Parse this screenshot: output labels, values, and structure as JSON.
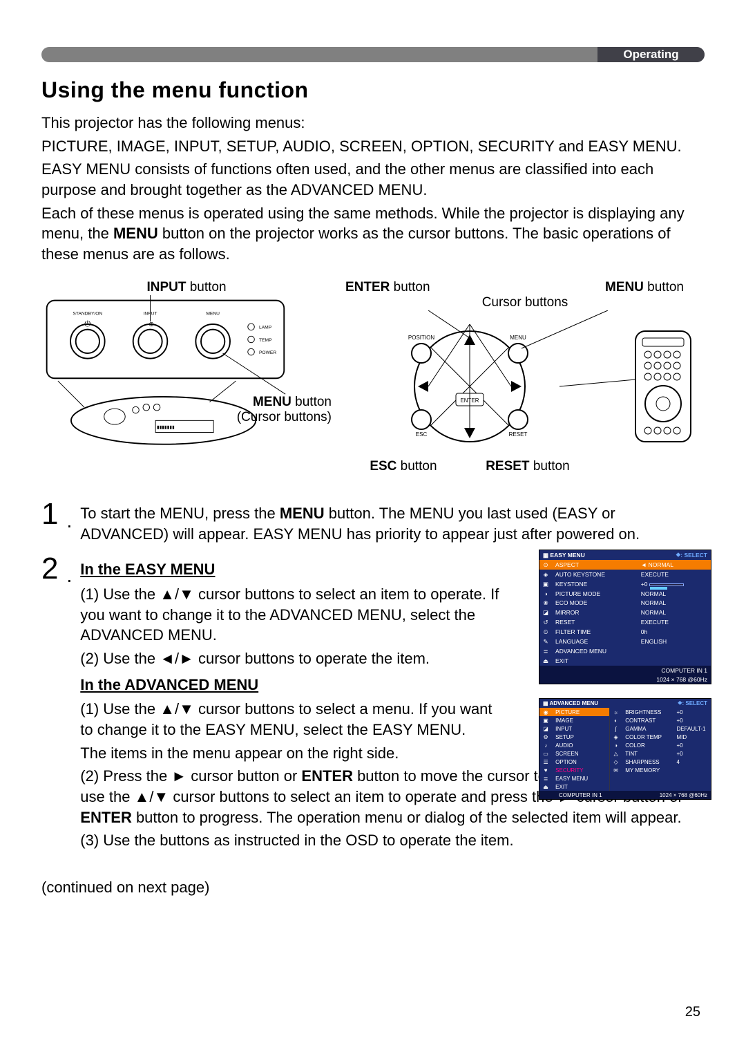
{
  "header": {
    "section": "Operating"
  },
  "title": "Using the menu function",
  "intro_line1": "This projector has the following menus:",
  "intro_line2": "PICTURE, IMAGE, INPUT, SETUP, AUDIO, SCREEN, OPTION, SECURITY and EASY MENU.",
  "intro_line3": "EASY MENU consists of functions often used, and the other menus are classified into each purpose and brought together as the ADVANCED MENU.",
  "intro_line4_a": "Each of these menus is operated using the same methods. While the projector is displaying any menu, the ",
  "intro_line4_menu": "MENU",
  "intro_line4_b": " button on the projector works as the cursor buttons. The basic operations of these menus are as follows.",
  "diag": {
    "input_btn_bold": "INPUT",
    "input_btn_rest": " button",
    "menu_btn_bold": "MENU",
    "menu_btn_rest": " button",
    "cursor_btns": "(Cursor buttons)",
    "enter_btn_bold": "ENTER",
    "enter_btn_rest": " button",
    "menu2_bold": "MENU",
    "menu2_rest": " button",
    "cursor_btns2": "Cursor buttons",
    "esc_btn_bold": "ESC",
    "esc_btn_rest": " button",
    "reset_btn_bold": "RESET",
    "reset_btn_rest": " button",
    "top_labels": {
      "standby": "STANDBY/ON",
      "input": "INPUT",
      "menu": "MENU",
      "lamp": "LAMP",
      "temp": "TEMP",
      "power": "POWER"
    },
    "remote_labels": {
      "position": "POSITION",
      "menu": "MENU",
      "enter": "ENTER",
      "esc": "ESC",
      "reset": "RESET"
    }
  },
  "step1_a": "To start the MENU, press the ",
  "step1_menu": "MENU",
  "step1_b": " button. The MENU you last used (EASY or ADVANCED) will appear. EASY MENU has priority to appear just after powered on.",
  "easy_heading": "In the EASY MENU",
  "easy_1": "(1) Use the ▲/▼ cursor buttons to select an item to operate. If you want to change it to the ADVANCED MENU, select the ADVANCED MENU.",
  "easy_2": "(2) Use the ◄/► cursor buttons to operate the item.",
  "adv_heading": "In the ADVANCED MENU",
  "adv_1": "(1) Use the ▲/▼ cursor buttons to select a menu. If you want to change it to the EASY MENU, select the EASY MENU.",
  "adv_1b": "The items in the menu appear on the right side.",
  "adv_2a": "(2) Press the ► cursor button or ",
  "adv_2_enter": "ENTER",
  "adv_2b": " button to move the cursor to the right side. Then use the ▲/▼ cursor buttons to select an item to operate and press the ► cursor button or ",
  "adv_2_enter2": "ENTER",
  "adv_2c": " button to progress. The operation menu or dialog of the selected item will appear.",
  "adv_3": "(3) Use the buttons as instructed in the OSD to operate the item.",
  "continued": "(continued on next page)",
  "page_number": "25",
  "easy_menu": {
    "title": "EASY MENU",
    "select": "⯁: SELECT",
    "rows": [
      {
        "icon": "⊙",
        "label": "ASPECT",
        "value": "◄ NORMAL",
        "sel": true
      },
      {
        "icon": "◈",
        "label": "AUTO KEYSTONE",
        "value": "EXECUTE"
      },
      {
        "icon": "▣",
        "label": "KEYSTONE",
        "value": "+0"
      },
      {
        "icon": "◑",
        "label": "PICTURE MODE",
        "value": "NORMAL"
      },
      {
        "icon": "❀",
        "label": "ECO MODE",
        "value": "NORMAL"
      },
      {
        "icon": "◪",
        "label": "MIRROR",
        "value": "NORMAL"
      },
      {
        "icon": "↺",
        "label": "RESET",
        "value": "EXECUTE"
      },
      {
        "icon": "⏲",
        "label": "FILTER TIME",
        "value": "0h"
      },
      {
        "icon": "✎",
        "label": "LANGUAGE",
        "value": "ENGLISH"
      },
      {
        "icon": "≣",
        "label": "ADVANCED MENU",
        "value": ""
      },
      {
        "icon": "⏏",
        "label": "EXIT",
        "value": ""
      }
    ],
    "info1": "COMPUTER IN 1",
    "info2": "1024 × 768 @60Hz"
  },
  "adv_menu": {
    "title": "ADVANCED MENU",
    "select": "⯁: SELECT",
    "left": [
      "PICTURE",
      "IMAGE",
      "INPUT",
      "SETUP",
      "AUDIO",
      "SCREEN",
      "OPTION",
      "SECURITY",
      "EASY MENU",
      "EXIT"
    ],
    "right": [
      {
        "icon": "☼",
        "label": "BRIGHTNESS",
        "value": "+0"
      },
      {
        "icon": "◐",
        "label": "CONTRAST",
        "value": "+0"
      },
      {
        "icon": "∫",
        "label": "GAMMA",
        "value": "DEFAULT-1"
      },
      {
        "icon": "◈",
        "label": "COLOR TEMP",
        "value": "MID"
      },
      {
        "icon": "◑",
        "label": "COLOR",
        "value": "+0"
      },
      {
        "icon": "△",
        "label": "TINT",
        "value": "+0"
      },
      {
        "icon": "◇",
        "label": "SHARPNESS",
        "value": "4"
      },
      {
        "icon": "✉",
        "label": "MY MEMORY",
        "value": ""
      }
    ],
    "info1": "COMPUTER IN 1",
    "info2": "1024 × 768 @60Hz"
  }
}
